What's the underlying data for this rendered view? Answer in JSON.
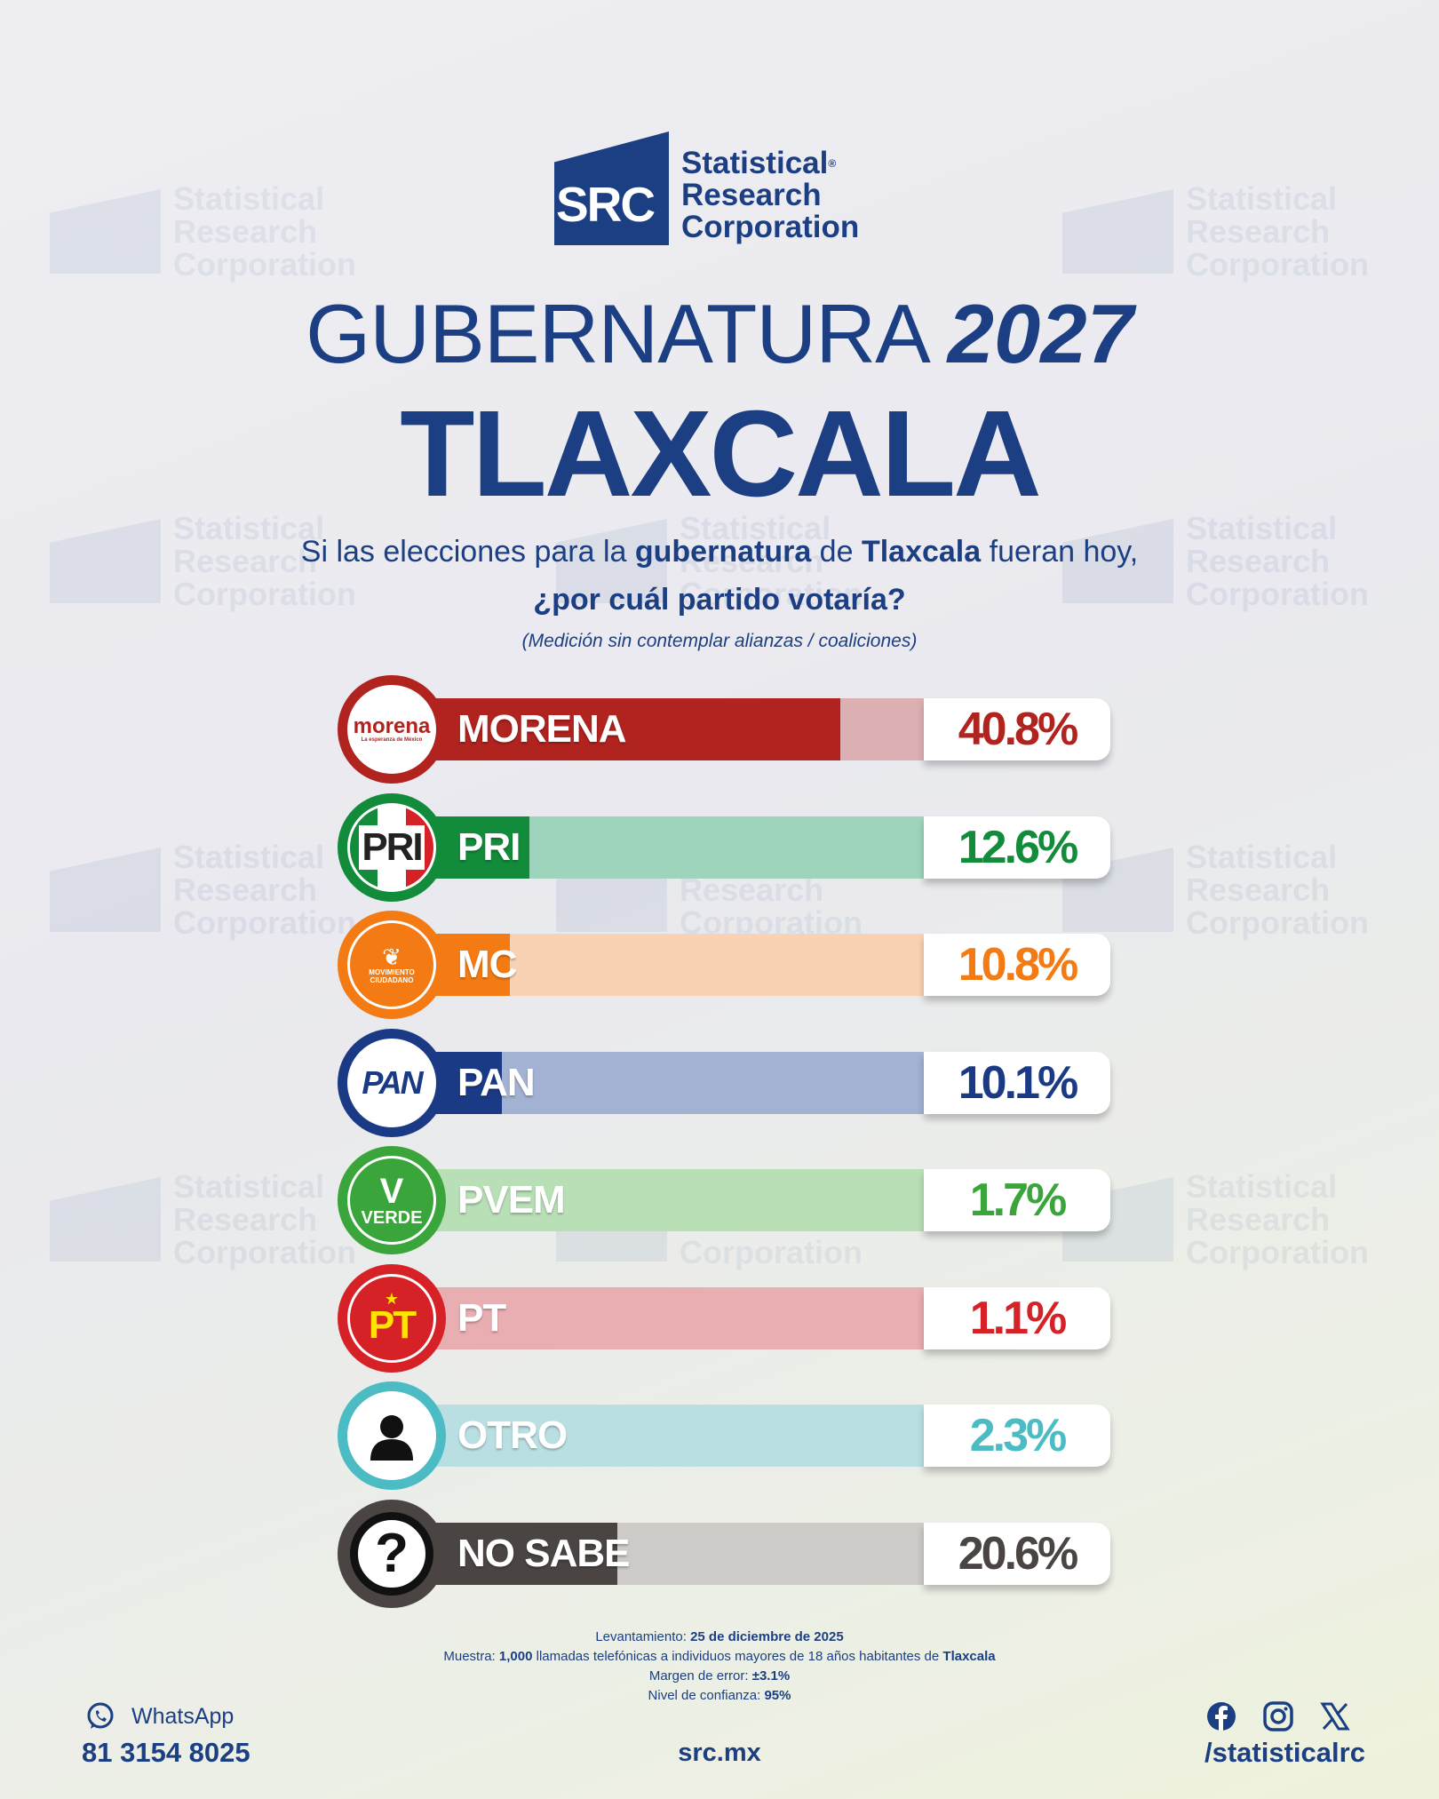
{
  "brand": {
    "line1": "Statistical",
    "line2": "Research",
    "line3": "Corporation",
    "mark": "SRC",
    "reg": "®"
  },
  "header": {
    "title_light": "GUBERNATURA ",
    "title_bold": "2027",
    "state": "TLAXCALA"
  },
  "question": {
    "p1": "Si las elecciones para la ",
    "b1": "gubernatura",
    "p2": " de ",
    "b2": "Tlaxcala",
    "p3": " fueran hoy,",
    "line2": "¿por cuál partido votaría?",
    "note": "(Medición sin contemplar alianzas / coaliciones)"
  },
  "chart_data": {
    "type": "bar",
    "categories": [
      "MORENA",
      "PRI",
      "MC",
      "PAN",
      "PVEM",
      "PT",
      "OTRO",
      "NO SABE"
    ],
    "values": [
      40.8,
      12.6,
      10.8,
      10.1,
      1.7,
      1.1,
      2.3,
      20.6
    ],
    "labels": [
      "40.8%",
      "12.6%",
      "10.8%",
      "10.1%",
      "1.7%",
      "1.1%",
      "2.3%",
      "20.6%"
    ],
    "colors": [
      "#b0231f",
      "#128c3a",
      "#f47b14",
      "#1b3a86",
      "#3aa53a",
      "#d62227",
      "#4bbcc4",
      "#4a4443"
    ],
    "bg_colors": [
      "#dcb0b2",
      "#9fd4bc",
      "#f8d2b2",
      "#a3b1d2",
      "#b8dfb6",
      "#e8aeb2",
      "#b9dfe3",
      "#cecac8"
    ],
    "xlim": [
      0,
      50
    ]
  },
  "badges": [
    {
      "icon": "morena-logo-icon",
      "text": "morena",
      "sub": "La esperanza de México"
    },
    {
      "icon": "pri-logo-icon",
      "text": "PRI"
    },
    {
      "icon": "mc-logo-icon",
      "text": "MOVIMIENTO CIUDADANO"
    },
    {
      "icon": "pan-logo-icon",
      "text": "PAN"
    },
    {
      "icon": "pvem-logo-icon",
      "text": "VERDE"
    },
    {
      "icon": "pt-logo-icon",
      "text": "PT"
    },
    {
      "icon": "person-icon"
    },
    {
      "icon": "question-mark-icon",
      "text": "?"
    }
  ],
  "methodology": {
    "l1a": "Levantamiento: ",
    "l1b": "25 de diciembre de 2025",
    "l2a": "Muestra: ",
    "l2b": "1,000",
    "l2c": " llamadas telefónicas a individuos mayores de 18 años habitantes de ",
    "l2d": "Tlaxcala",
    "l3a": "Margen de error: ",
    "l3b": "±3.1%",
    "l4a": "Nivel de confianza: ",
    "l4b": "95%"
  },
  "footer": {
    "whatsapp_label": "WhatsApp",
    "phone": "81 3154 8025",
    "site": "src.mx",
    "handle": "/statisticalrc",
    "icons": [
      "whatsapp-icon",
      "facebook-icon",
      "instagram-icon",
      "x-icon"
    ]
  }
}
